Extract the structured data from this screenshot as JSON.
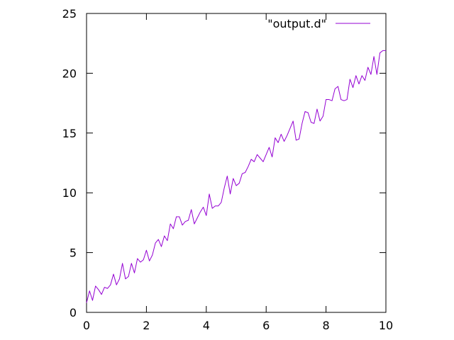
{
  "chart_data": {
    "type": "line",
    "title": "",
    "xlabel": "",
    "ylabel": "",
    "xlim": [
      0,
      10
    ],
    "ylim": [
      0,
      25
    ],
    "x_ticks": [
      "0",
      "2",
      "4",
      "6",
      "8",
      "10"
    ],
    "y_ticks": [
      "0",
      "5",
      "10",
      "15",
      "20",
      "25"
    ],
    "grid": false,
    "legend_position": "top-right",
    "series": [
      {
        "name": "\"output.d\"",
        "color": "#9400d3",
        "x": [
          0.0,
          0.1,
          0.2,
          0.3,
          0.4,
          0.5,
          0.6,
          0.7,
          0.8,
          0.9,
          1.0,
          1.1,
          1.2,
          1.3,
          1.4,
          1.5,
          1.6,
          1.7,
          1.8,
          1.9,
          2.0,
          2.1,
          2.2,
          2.3,
          2.4,
          2.5,
          2.6,
          2.7,
          2.8,
          2.9,
          3.0,
          3.1,
          3.2,
          3.3,
          3.4,
          3.5,
          3.6,
          3.7,
          3.8,
          3.9,
          4.0,
          4.1,
          4.2,
          4.3,
          4.4,
          4.5,
          4.6,
          4.7,
          4.8,
          4.9,
          5.0,
          5.1,
          5.2,
          5.3,
          5.4,
          5.5,
          5.6,
          5.7,
          5.8,
          5.9,
          6.0,
          6.1,
          6.2,
          6.3,
          6.4,
          6.5,
          6.6,
          6.7,
          6.8,
          6.9,
          7.0,
          7.1,
          7.2,
          7.3,
          7.4,
          7.5,
          7.6,
          7.7,
          7.8,
          7.9,
          8.0,
          8.1,
          8.2,
          8.3,
          8.4,
          8.5,
          8.6,
          8.7,
          8.8,
          8.9,
          9.0,
          9.1,
          9.2,
          9.3,
          9.4,
          9.5,
          9.6,
          9.7,
          9.8,
          9.9,
          10.0
        ],
        "y": [
          0.8,
          1.8,
          1.0,
          2.2,
          1.9,
          1.5,
          2.1,
          2.0,
          2.3,
          3.2,
          2.3,
          2.8,
          4.1,
          2.8,
          3.0,
          4.1,
          3.3,
          4.5,
          4.2,
          4.4,
          5.2,
          4.3,
          4.8,
          5.8,
          6.1,
          5.5,
          6.4,
          6.0,
          7.4,
          7.0,
          8.0,
          8.0,
          7.3,
          7.6,
          7.7,
          8.6,
          7.4,
          7.9,
          8.4,
          8.8,
          8.1,
          9.9,
          8.7,
          8.9,
          8.9,
          9.2,
          10.4,
          11.4,
          9.9,
          11.2,
          10.6,
          10.8,
          11.6,
          11.7,
          12.2,
          12.8,
          12.6,
          13.2,
          12.9,
          12.6,
          13.2,
          13.8,
          13.0,
          14.6,
          14.2,
          14.9,
          14.3,
          14.8,
          15.4,
          16.0,
          14.4,
          14.5,
          15.8,
          16.8,
          16.7,
          15.9,
          15.8,
          17.0,
          16.0,
          16.4,
          17.8,
          17.8,
          17.7,
          18.7,
          18.9,
          17.8,
          17.7,
          17.8,
          19.5,
          18.8,
          19.8,
          19.1,
          19.8,
          19.4,
          20.5,
          19.9,
          21.4,
          19.9,
          21.7,
          21.9,
          21.9
        ]
      }
    ]
  }
}
